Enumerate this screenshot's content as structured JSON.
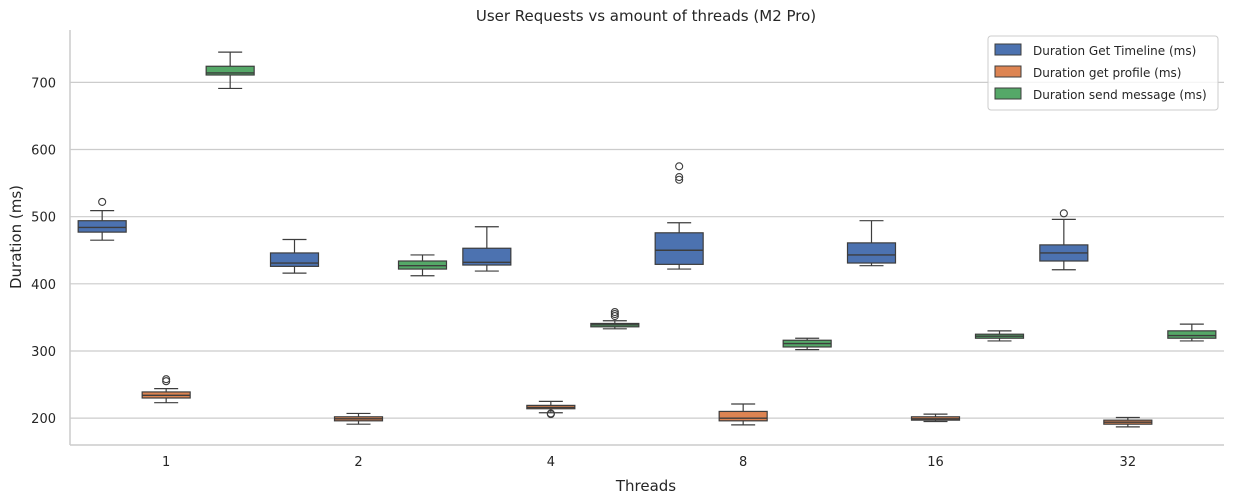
{
  "chart_data": {
    "type": "boxplot",
    "title": "User Requests vs amount of threads (M2 Pro)",
    "xlabel": "Threads",
    "ylabel": "Duration (ms)",
    "categories": [
      "1",
      "2",
      "4",
      "8",
      "16",
      "32"
    ],
    "ylim": [
      160,
      778
    ],
    "yticks": [
      200,
      300,
      400,
      500,
      600,
      700
    ],
    "grid": "horizontal",
    "legend_position": "top-right",
    "series": [
      {
        "name": "Duration Get Timeline (ms)",
        "color": "#4c72b0",
        "boxes": [
          {
            "whisker_low": 465,
            "q1": 477,
            "median": 484,
            "q3": 494,
            "whisker_high": 509,
            "outliers": [
              522
            ]
          },
          {
            "whisker_low": 416,
            "q1": 426,
            "median": 431,
            "q3": 446,
            "whisker_high": 466,
            "outliers": []
          },
          {
            "whisker_low": 419,
            "q1": 428,
            "median": 432,
            "q3": 453,
            "whisker_high": 485,
            "outliers": []
          },
          {
            "whisker_low": 422,
            "q1": 429,
            "median": 450,
            "q3": 476,
            "whisker_high": 491,
            "outliers": [
              555,
              559,
              575
            ]
          },
          {
            "whisker_low": 427,
            "q1": 431,
            "median": 443,
            "q3": 461,
            "whisker_high": 494,
            "outliers": []
          },
          {
            "whisker_low": 421,
            "q1": 434,
            "median": 446,
            "q3": 458,
            "whisker_high": 496,
            "outliers": [
              505
            ]
          }
        ]
      },
      {
        "name": "Duration get profile (ms)",
        "color": "#dd8452",
        "boxes": [
          {
            "whisker_low": 223,
            "q1": 230,
            "median": 234,
            "q3": 239,
            "whisker_high": 244,
            "outliers": [
              255,
              258
            ]
          },
          {
            "whisker_low": 191,
            "q1": 196,
            "median": 199,
            "q3": 202,
            "whisker_high": 207,
            "outliers": []
          },
          {
            "whisker_low": 208,
            "q1": 214,
            "median": 216,
            "q3": 219,
            "whisker_high": 225,
            "outliers": [
              206,
              207
            ]
          },
          {
            "whisker_low": 190,
            "q1": 196,
            "median": 200,
            "q3": 210,
            "whisker_high": 221,
            "outliers": []
          },
          {
            "whisker_low": 195,
            "q1": 197,
            "median": 199,
            "q3": 202,
            "whisker_high": 206,
            "outliers": []
          },
          {
            "whisker_low": 187,
            "q1": 191,
            "median": 194,
            "q3": 197,
            "whisker_high": 201,
            "outliers": []
          }
        ]
      },
      {
        "name": "Duration send message (ms)",
        "color": "#55a868",
        "boxes": [
          {
            "whisker_low": 691,
            "q1": 711,
            "median": 714,
            "q3": 724,
            "whisker_high": 745,
            "outliers": []
          },
          {
            "whisker_low": 412,
            "q1": 422,
            "median": 427,
            "q3": 434,
            "whisker_high": 443,
            "outliers": []
          },
          {
            "whisker_low": 333,
            "q1": 336,
            "median": 339,
            "q3": 341,
            "whisker_high": 345,
            "outliers": [
              352,
              355,
              358
            ]
          },
          {
            "whisker_low": 302,
            "q1": 306,
            "median": 311,
            "q3": 316,
            "whisker_high": 319,
            "outliers": []
          },
          {
            "whisker_low": 315,
            "q1": 319,
            "median": 322,
            "q3": 325,
            "whisker_high": 330,
            "outliers": []
          },
          {
            "whisker_low": 315,
            "q1": 319,
            "median": 323,
            "q3": 330,
            "whisker_high": 340,
            "outliers": []
          }
        ]
      }
    ]
  }
}
